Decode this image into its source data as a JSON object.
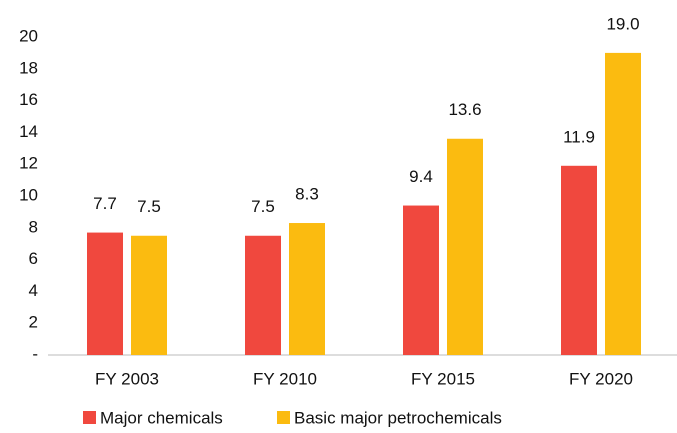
{
  "chart_data": {
    "type": "bar",
    "categories": [
      "FY 2003",
      "FY 2010",
      "FY 2015",
      "FY 2020"
    ],
    "series": [
      {
        "name": "Major chemicals",
        "color": "#f0483e",
        "values": [
          7.7,
          7.5,
          9.4,
          11.9
        ],
        "value_labels": [
          "7.7",
          "7.5",
          "9.4",
          "11.9"
        ]
      },
      {
        "name": "Basic major petrochemicals",
        "color": "#fbbb10",
        "values": [
          7.5,
          8.3,
          13.6,
          19.0
        ],
        "value_labels": [
          "7.5",
          "8.3",
          "13.6",
          "19.0"
        ]
      }
    ],
    "ylim": [
      0,
      20
    ],
    "yticks": [
      {
        "value": 0,
        "label": "-"
      },
      2,
      4,
      6,
      8,
      10,
      12,
      14,
      16,
      18,
      20
    ],
    "grid": false,
    "legend": "bottom"
  }
}
